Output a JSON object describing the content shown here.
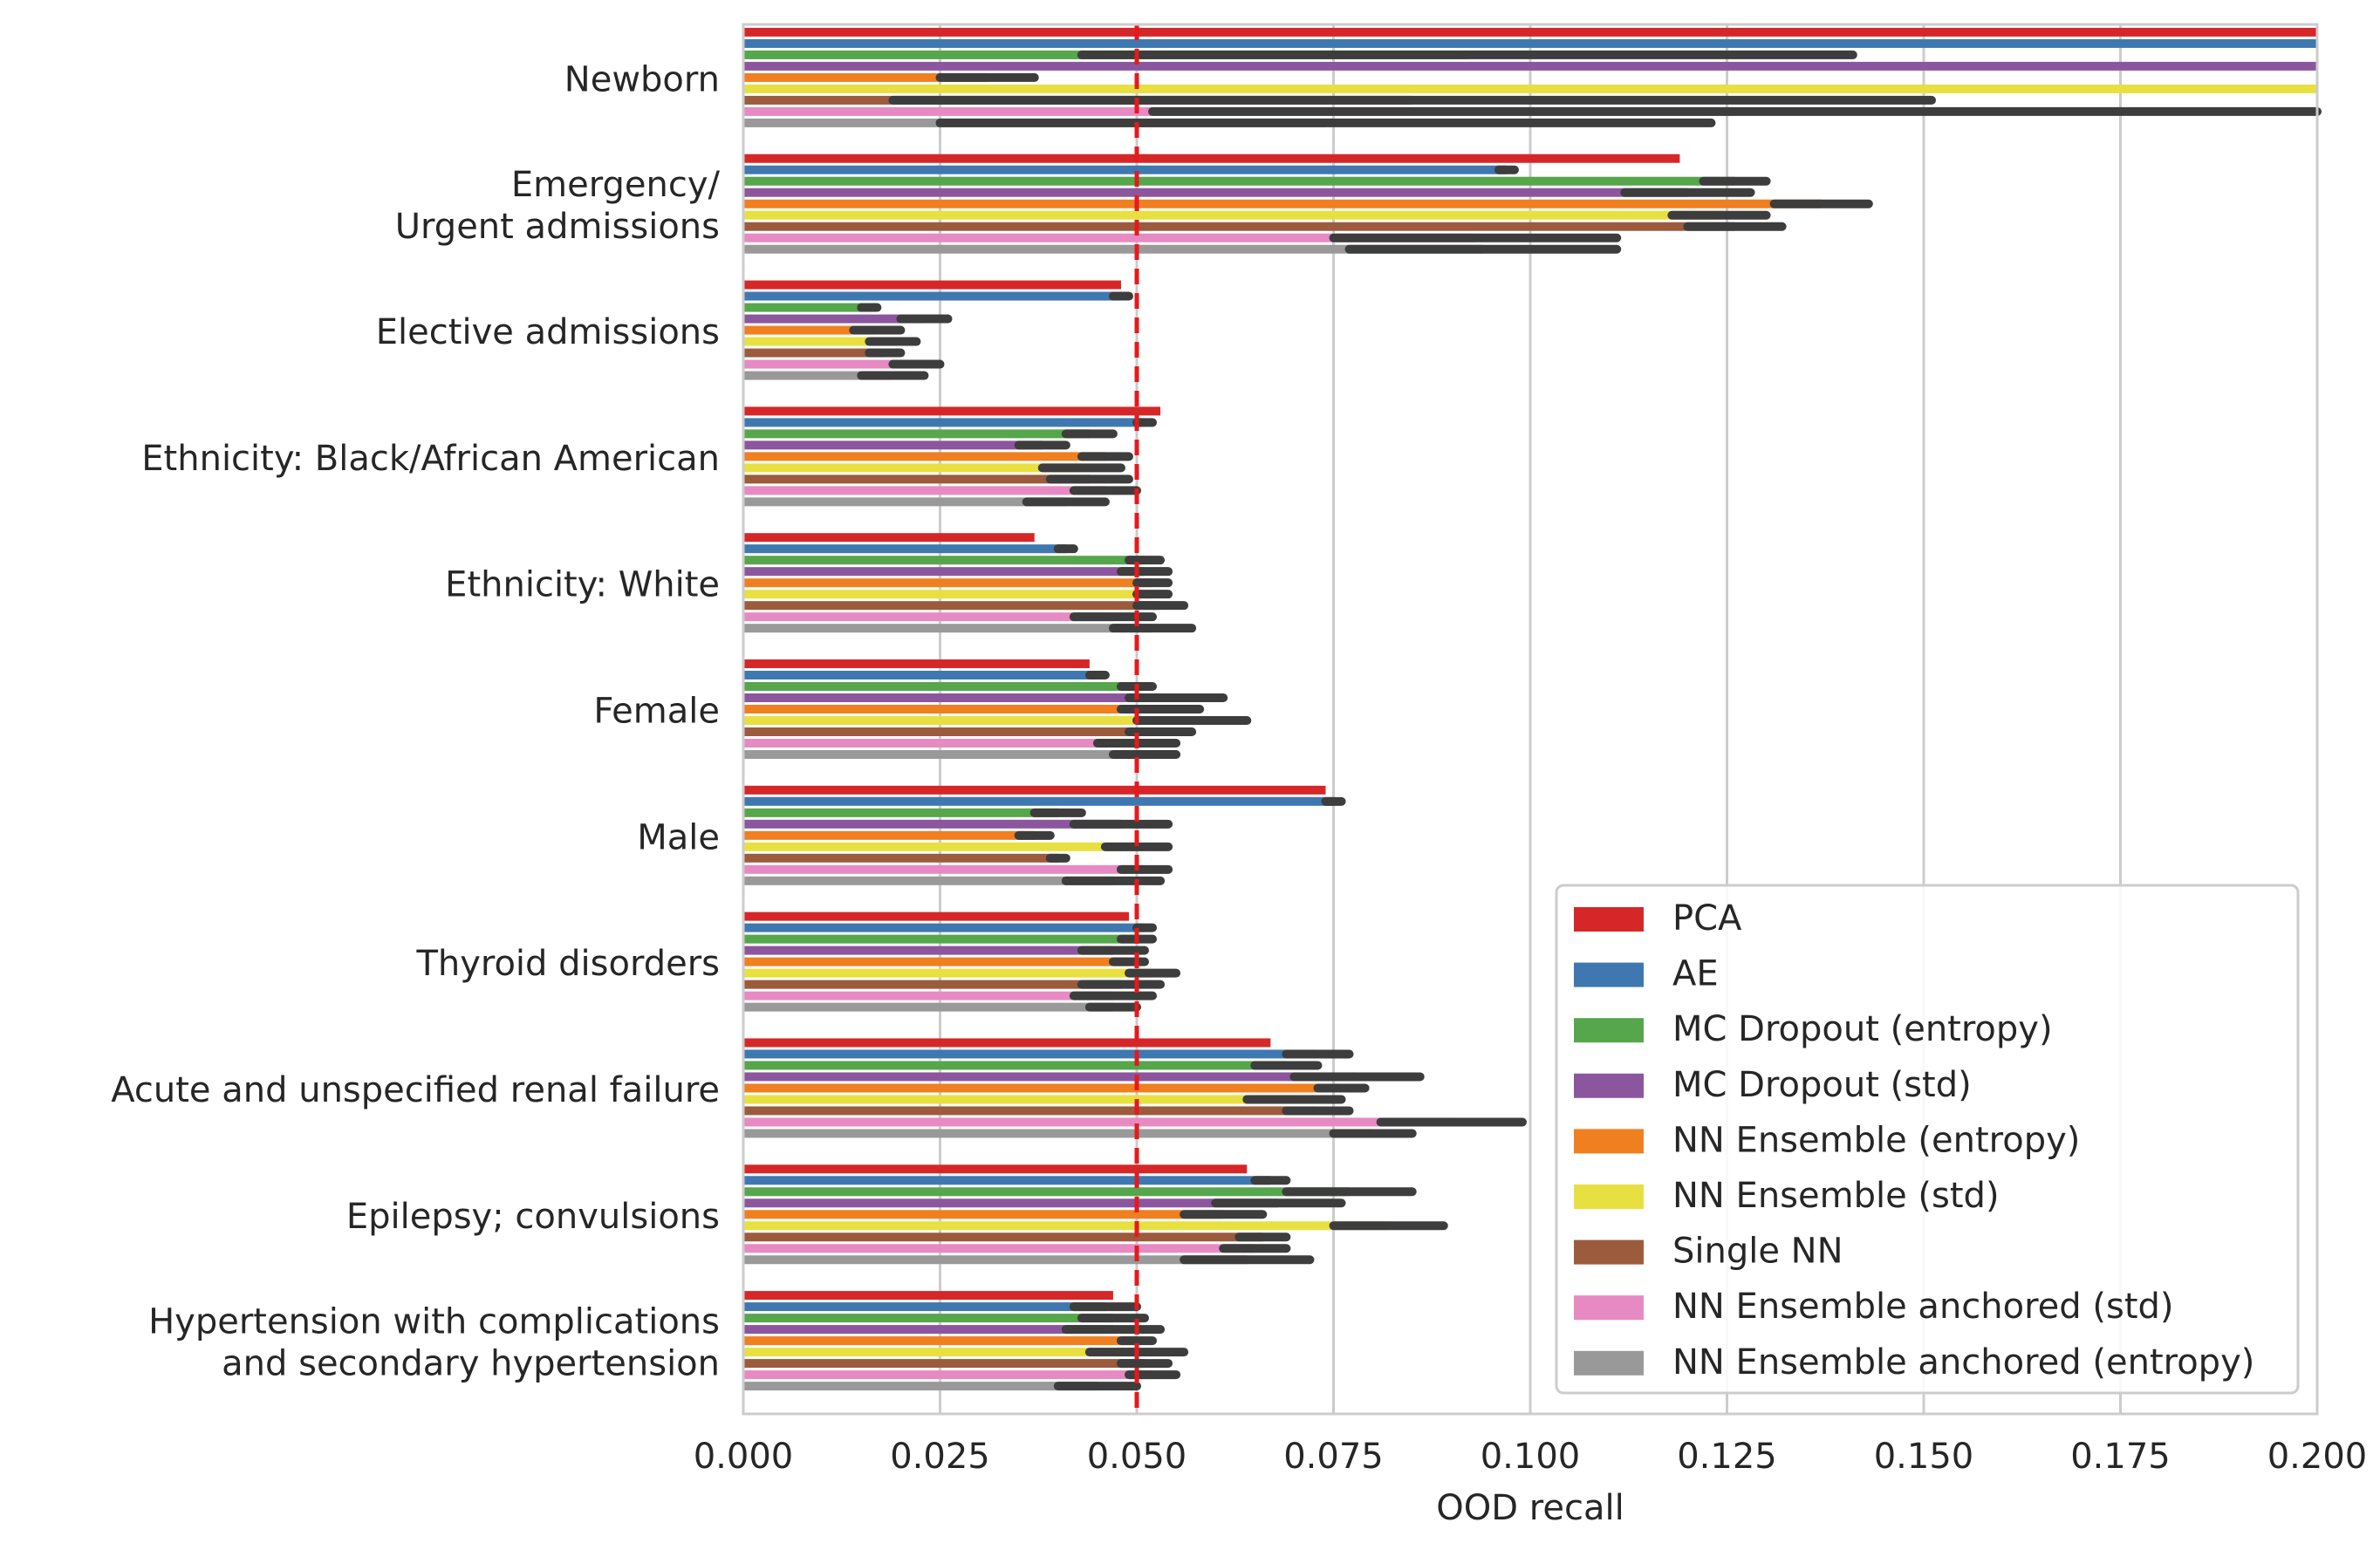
{
  "chart_data": {
    "type": "bar",
    "orientation": "horizontal",
    "xlabel": "OOD recall",
    "ylabel": "",
    "xlim": [
      0,
      0.2
    ],
    "xticks": [
      "0.000",
      "0.025",
      "0.050",
      "0.075",
      "0.100",
      "0.125",
      "0.150",
      "0.175",
      "0.200"
    ],
    "reference_line": {
      "x": 0.05,
      "style": "dashed",
      "color": "#e41a1c"
    },
    "grid": "vertical",
    "legend_position": "bottom-right",
    "categories": [
      [
        "Newborn"
      ],
      [
        "Emergency/",
        "Urgent admissions"
      ],
      [
        "Elective admissions"
      ],
      [
        "Ethnicity: Black/African American"
      ],
      [
        "Ethnicity: White"
      ],
      [
        "Female"
      ],
      [
        "Male"
      ],
      [
        "Thyroid disorders"
      ],
      [
        "Acute and unspecified renal failure"
      ],
      [
        "Epilepsy; convulsions"
      ],
      [
        "Hypertension with complications",
        "and secondary hypertension"
      ]
    ],
    "series": [
      {
        "name": "PCA",
        "color": "#d62728",
        "values": [
          0.2,
          0.119,
          0.048,
          0.053,
          0.037,
          0.044,
          0.074,
          0.049,
          0.067,
          0.064,
          0.047
        ],
        "errors": [
          0,
          0,
          0,
          0,
          0,
          0,
          0,
          0,
          0,
          0,
          0
        ]
      },
      {
        "name": "AE",
        "color": "#3f78b0",
        "values": [
          0.2,
          0.097,
          0.048,
          0.051,
          0.041,
          0.045,
          0.075,
          0.051,
          0.073,
          0.067,
          0.046
        ],
        "errors": [
          0,
          0.001,
          0.001,
          0.001,
          0.001,
          0.001,
          0.001,
          0.001,
          0.004,
          0.002,
          0.004
        ]
      },
      {
        "name": "MC Dropout (entropy)",
        "color": "#56a64b",
        "values": [
          0.092,
          0.126,
          0.016,
          0.044,
          0.051,
          0.05,
          0.04,
          0.05,
          0.069,
          0.077,
          0.047
        ],
        "errors": [
          0.049,
          0.004,
          0.001,
          0.003,
          0.002,
          0.002,
          0.003,
          0.002,
          0.004,
          0.008,
          0.004
        ]
      },
      {
        "name": "MC Dropout (std)",
        "color": "#8c569e",
        "values": [
          0.2,
          0.12,
          0.023,
          0.038,
          0.051,
          0.055,
          0.048,
          0.047,
          0.078,
          0.068,
          0.047
        ],
        "errors": [
          0,
          0.008,
          0.003,
          0.003,
          0.003,
          0.006,
          0.006,
          0.004,
          0.008,
          0.008,
          0.006
        ]
      },
      {
        "name": "NN Ensemble (entropy)",
        "color": "#f07f20",
        "values": [
          0.031,
          0.137,
          0.017,
          0.046,
          0.052,
          0.053,
          0.037,
          0.049,
          0.076,
          0.061,
          0.05
        ],
        "errors": [
          0.006,
          0.006,
          0.003,
          0.003,
          0.002,
          0.005,
          0.002,
          0.002,
          0.003,
          0.005,
          0.002
        ]
      },
      {
        "name": "NN Ensemble (std)",
        "color": "#e8e040",
        "values": [
          0.2,
          0.124,
          0.019,
          0.043,
          0.052,
          0.057,
          0.05,
          0.052,
          0.07,
          0.082,
          0.05
        ],
        "errors": [
          0,
          0.006,
          0.003,
          0.005,
          0.002,
          0.007,
          0.004,
          0.003,
          0.006,
          0.007,
          0.006
        ]
      },
      {
        "name": "Single NN",
        "color": "#9c5b3c",
        "values": [
          0.085,
          0.126,
          0.018,
          0.044,
          0.053,
          0.053,
          0.04,
          0.048,
          0.073,
          0.066,
          0.051
        ],
        "errors": [
          0.066,
          0.006,
          0.002,
          0.005,
          0.003,
          0.004,
          0.001,
          0.005,
          0.004,
          0.003,
          0.003
        ]
      },
      {
        "name": "NN Ensemble anchored (std)",
        "color": "#e78ac3",
        "values": [
          0.126,
          0.093,
          0.022,
          0.046,
          0.047,
          0.05,
          0.051,
          0.047,
          0.09,
          0.065,
          0.052
        ],
        "errors": [
          0.074,
          0.018,
          0.003,
          0.004,
          0.005,
          0.005,
          0.003,
          0.005,
          0.009,
          0.004,
          0.003
        ]
      },
      {
        "name": "NN Ensemble anchored (entropy)",
        "color": "#999999",
        "values": [
          0.074,
          0.094,
          0.019,
          0.041,
          0.052,
          0.051,
          0.047,
          0.047,
          0.08,
          0.064,
          0.045
        ],
        "errors": [
          0.049,
          0.017,
          0.004,
          0.005,
          0.005,
          0.004,
          0.006,
          0.003,
          0.005,
          0.008,
          0.005
        ]
      }
    ]
  }
}
